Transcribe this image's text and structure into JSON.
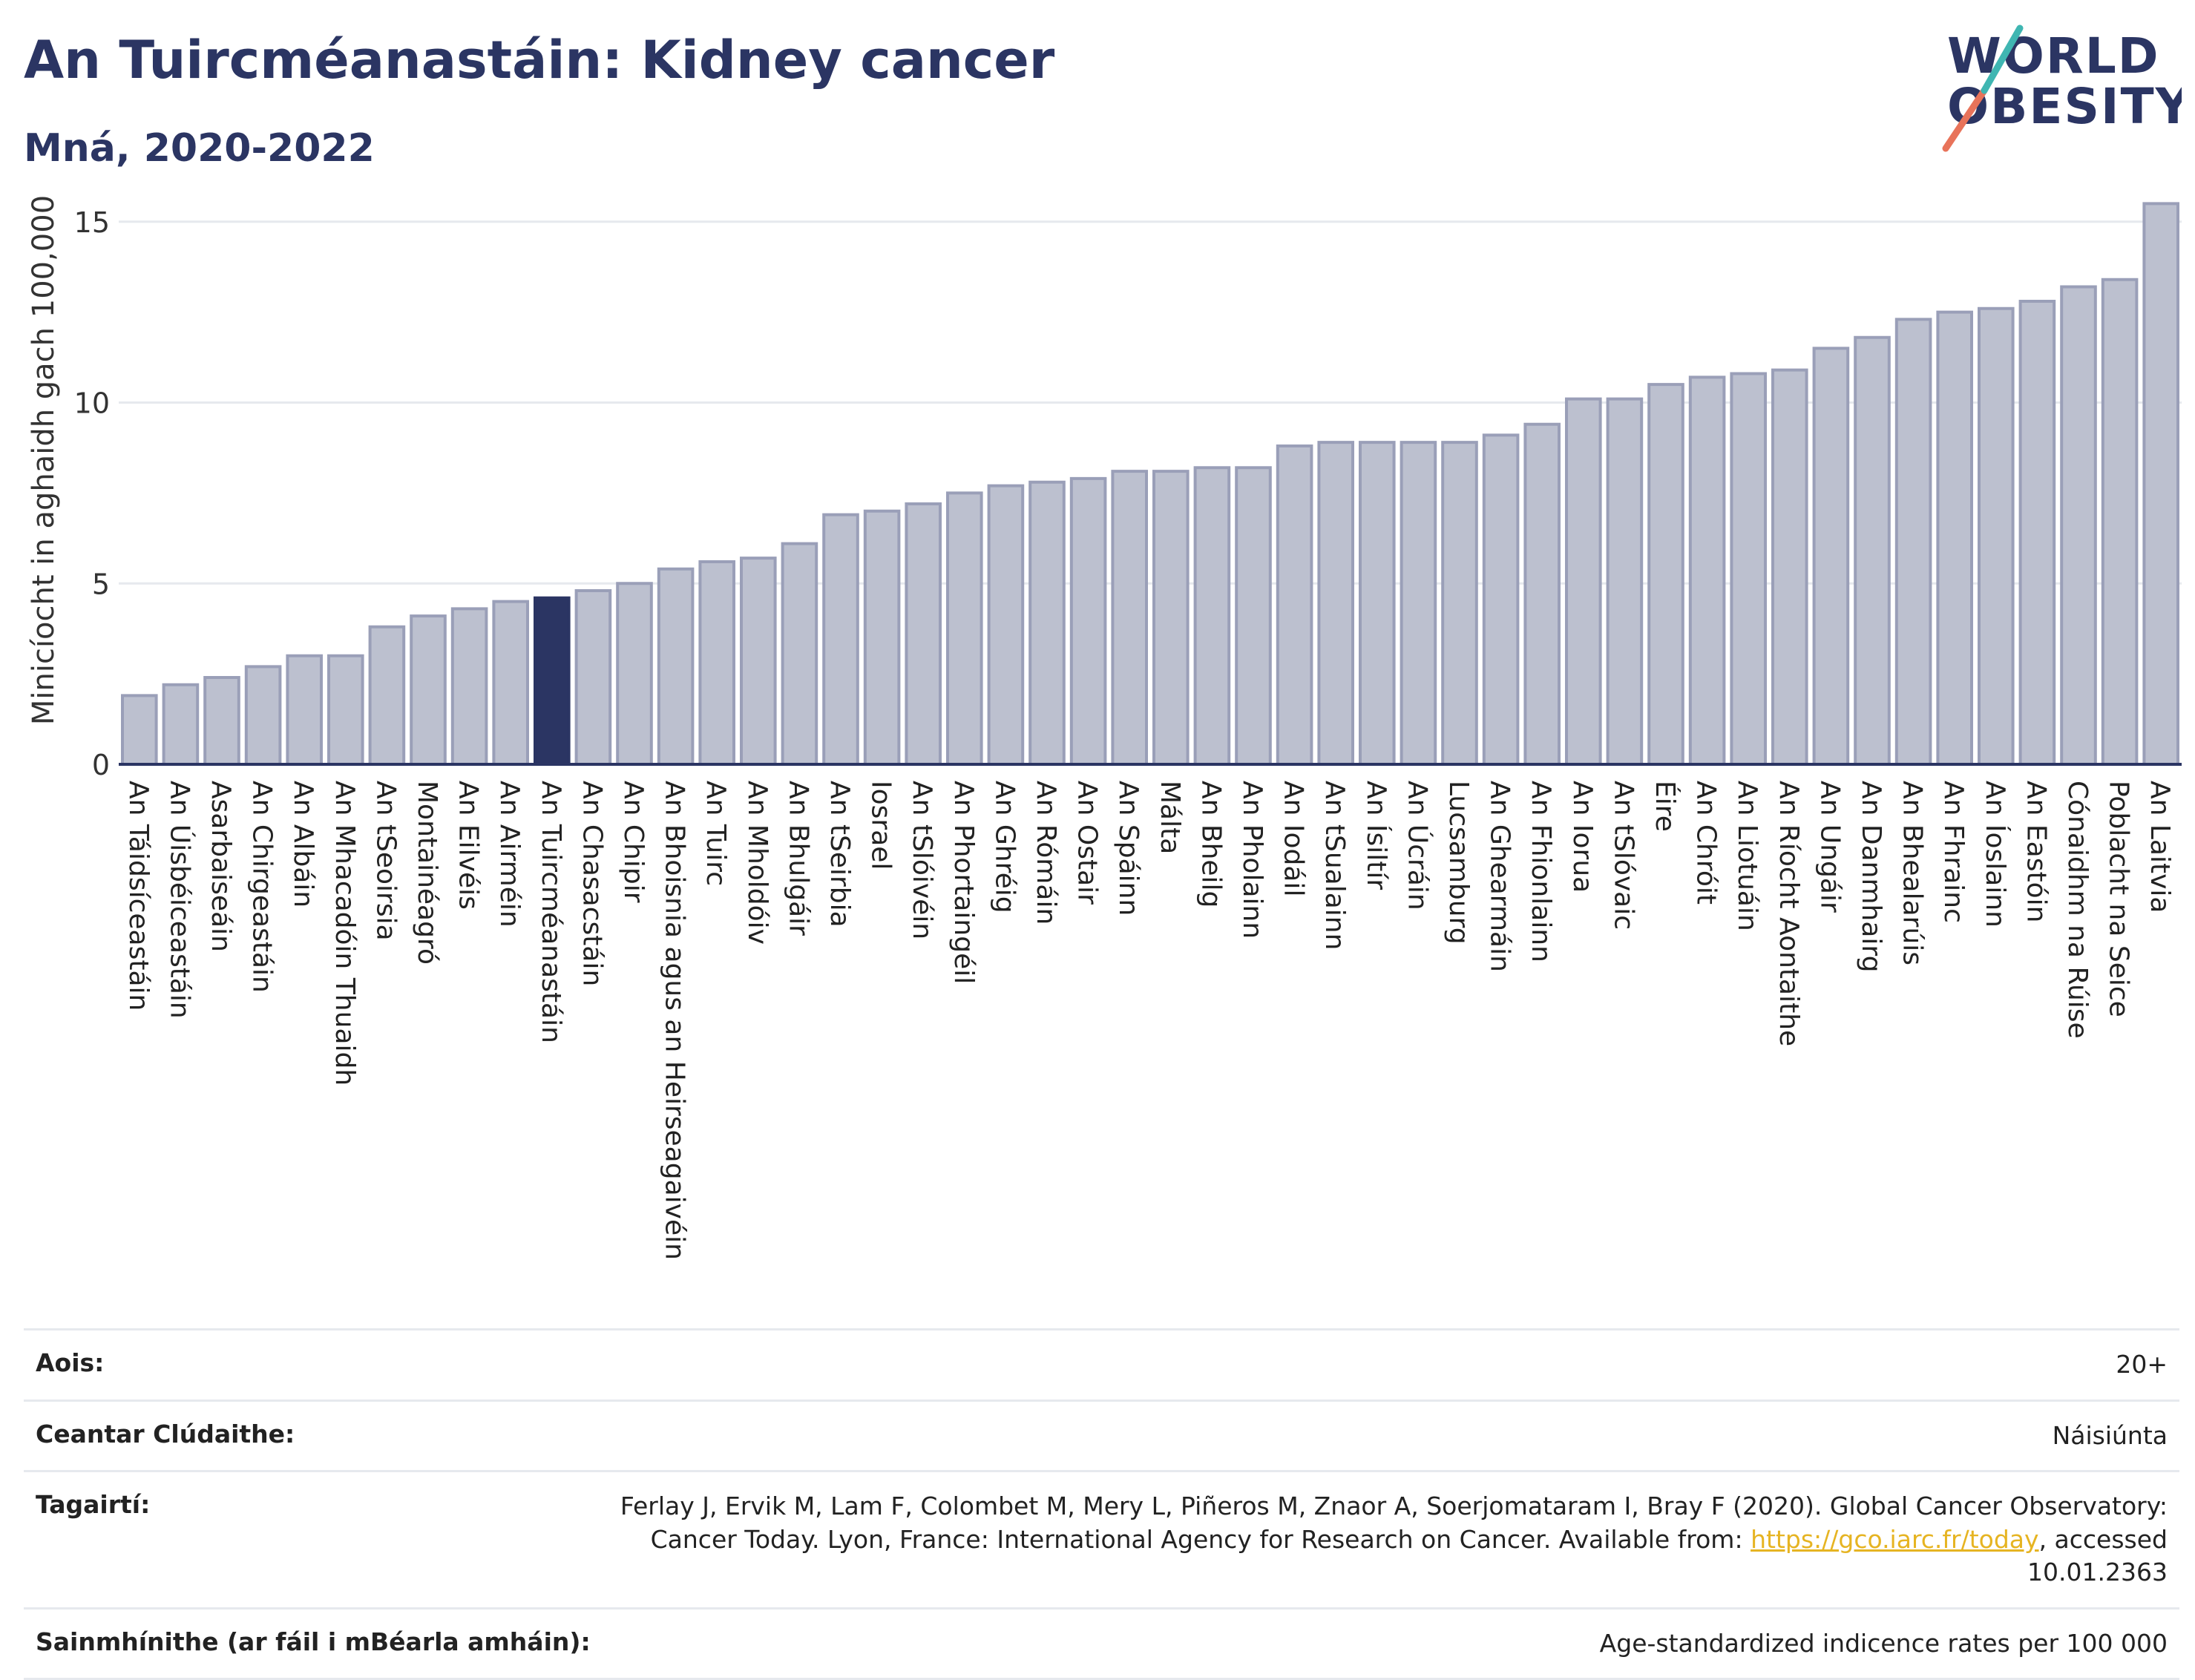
{
  "header": {
    "title": "An Tuircméanastáin: Kidney cancer",
    "subtitle": "Mná, 2020-2022"
  },
  "logo": {
    "line1": "WORLD",
    "line2": "OBESITY",
    "colors": {
      "text": "#2b3563",
      "slash_red": "#e8735a",
      "slash_teal": "#3fb6b2"
    }
  },
  "colors": {
    "bar": "#bcc0cf",
    "bar_stroke": "#9a9fb8",
    "highlight": "#2b3563",
    "grid": "#e6e9ee",
    "axis": "#2b3563"
  },
  "chart_data": {
    "type": "bar",
    "ylabel": "Minicíocht in aghaidh gach 100,000",
    "ylim": [
      0,
      16
    ],
    "yticks": [
      0,
      5,
      10,
      15
    ],
    "grid": true,
    "highlight": "An Tuircméanastáin",
    "categories": [
      "An Táidsíceastáin",
      "An Úisbéiceastáin",
      "Asarbaiseáin",
      "An Chirgeastáin",
      "An Albáin",
      "An Mhacadóin Thuaidh",
      "An tSeoirsia",
      "Montainéagró",
      "An Eilvéis",
      "An Airméin",
      "An Tuircméanastáin",
      "An Chasacstáin",
      "An Chipir",
      "An Bhoisnia agus an Heirseagaivéin",
      "An Tuirc",
      "An Mholdóiv",
      "An Bhulgáir",
      "An tSeirbia",
      "Iosrael",
      "An tSlóivéin",
      "An Phortaingéil",
      "An Ghréig",
      "An Rómáin",
      "An Ostair",
      "An Spáinn",
      "Málta",
      "An Bheilg",
      "An Pholainn",
      "An Iodáil",
      "An tSualainn",
      "An Ísiltír",
      "An Úcráin",
      "Lucsamburg",
      "An Ghearmáin",
      "An Fhionlainn",
      "An Iorua",
      "An tSlóvaic",
      "Éire",
      "An Chróit",
      "An Liotuáin",
      "An Ríocht Aontaithe",
      "An Ungáir",
      "An Danmhairg",
      "An Bhealarúis",
      "An Fhrainc",
      "An Íoslainn",
      "An Eastóin",
      "Cónaidhm na Rúise",
      "Poblacht na Seice",
      "An Laitvia"
    ],
    "values": [
      1.9,
      2.2,
      2.4,
      2.7,
      3.0,
      3.0,
      3.8,
      4.1,
      4.3,
      4.5,
      4.6,
      4.8,
      5.0,
      5.4,
      5.6,
      5.7,
      6.1,
      6.9,
      7.0,
      7.2,
      7.5,
      7.7,
      7.8,
      7.9,
      8.1,
      8.1,
      8.2,
      8.2,
      8.8,
      8.9,
      8.9,
      8.9,
      8.9,
      9.1,
      9.4,
      10.1,
      10.1,
      10.5,
      10.7,
      10.8,
      10.9,
      11.5,
      11.8,
      12.3,
      12.5,
      12.6,
      12.8,
      13.2,
      13.4,
      15.5
    ]
  },
  "meta": {
    "age_label": "Aois:",
    "age_value": "20+",
    "area_label": "Ceantar Clúdaithe:",
    "area_value": "Náisiúnta",
    "ref_label": "Tagairtí:",
    "ref_text_1": "Ferlay J, Ervik M, Lam F, Colombet M, Mery L, Piñeros M, Znaor A, Soerjomataram I, Bray F (2020). Global Cancer Observatory: Cancer Today. Lyon, France: International Agency for Research on Cancer. Available from: ",
    "ref_link": "https://gco.iarc.fr/today",
    "ref_text_2": ", accessed 10.01.2363",
    "def_label": "Sainmhínithe (ar fáil i mBéarla amháin):",
    "def_value": "Age-standardized indicence rates per 100 000"
  }
}
